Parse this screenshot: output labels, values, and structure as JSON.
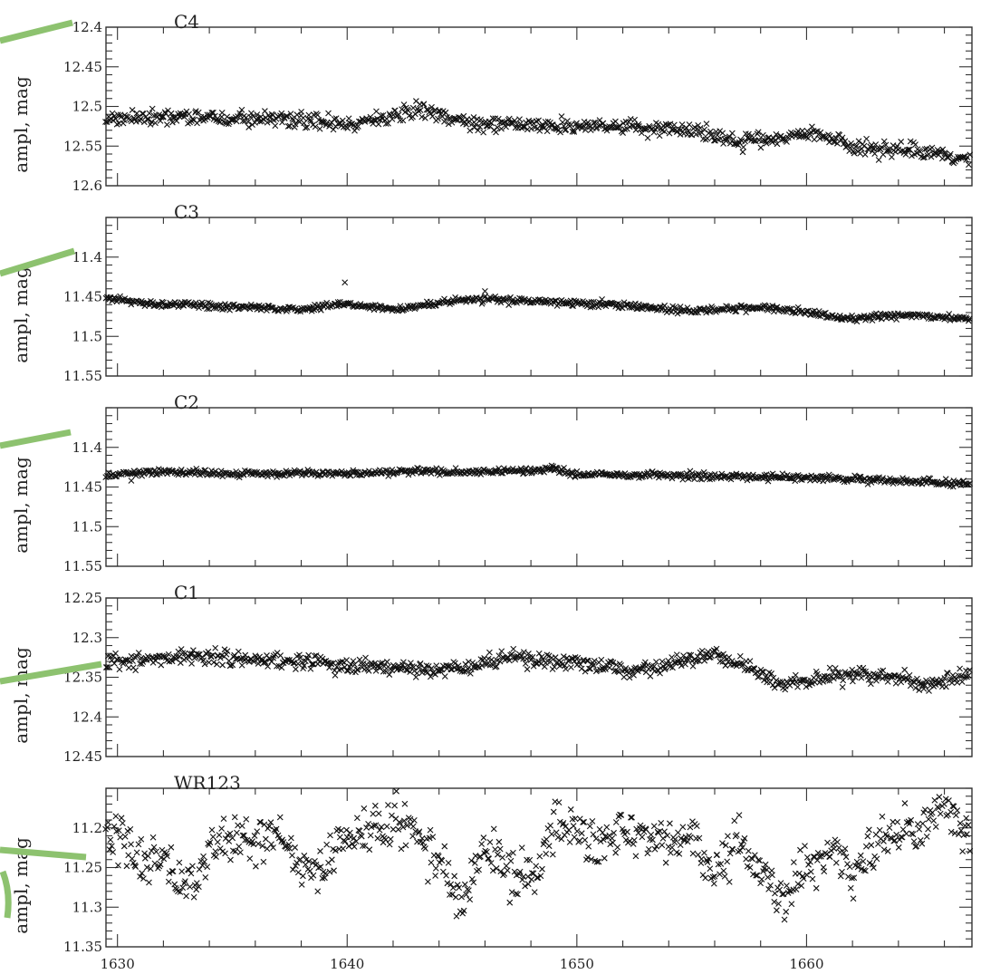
{
  "colors": {
    "marker": "#111111",
    "axis": "#333333",
    "accent_line": "#8dc26f"
  },
  "chart_data": [
    {
      "type": "scatter",
      "panel": "C4",
      "ylabel": "ampl, mag",
      "xlim": [
        1629.5,
        1667.2
      ],
      "ylim": [
        12.6,
        12.4
      ],
      "y_inverted": true,
      "xticks": [
        1630,
        1640,
        1650,
        1660
      ],
      "xtick_labels": [
        "",
        "",
        "",
        ""
      ],
      "yticks": [
        12.4,
        12.45,
        12.5,
        12.55,
        12.6
      ],
      "ytick_labels": [
        "12.4",
        "12.45",
        "12.5",
        "12.55",
        "12.6"
      ],
      "marker": "x",
      "grid": false,
      "trend_x": [
        1629.5,
        1632,
        1635,
        1637,
        1640,
        1642,
        1643.3,
        1645,
        1648,
        1652,
        1655,
        1657,
        1659,
        1660.5,
        1662,
        1664,
        1667
      ],
      "trend_y": [
        12.518,
        12.512,
        12.516,
        12.514,
        12.522,
        12.515,
        12.503,
        12.52,
        12.525,
        12.525,
        12.53,
        12.545,
        12.54,
        12.535,
        12.55,
        12.555,
        12.565
      ],
      "scatter": 0.005
    },
    {
      "type": "scatter",
      "panel": "C3",
      "ylabel": "ampl, mag",
      "xlim": [
        1629.5,
        1667.2
      ],
      "ylim": [
        11.55,
        11.35
      ],
      "y_inverted": true,
      "xticks": [
        1630,
        1640,
        1650,
        1660
      ],
      "xtick_labels": [
        "",
        "",
        "",
        ""
      ],
      "yticks": [
        11.4,
        11.45,
        11.5,
        11.55
      ],
      "ytick_labels": [
        "11.4",
        "11.45",
        "11.5",
        "11.55"
      ],
      "marker": "x",
      "grid": false,
      "trend_x": [
        1629.5,
        1632,
        1635,
        1638,
        1640,
        1642,
        1645,
        1648,
        1652,
        1655,
        1658,
        1660,
        1662,
        1664,
        1667
      ],
      "trend_y": [
        11.452,
        11.46,
        11.463,
        11.466,
        11.459,
        11.466,
        11.453,
        11.455,
        11.461,
        11.468,
        11.463,
        11.47,
        11.478,
        11.473,
        11.477
      ],
      "scatter": 0.002,
      "outliers": [
        [
          1639.9,
          11.432
        ],
        [
          1646.0,
          11.443
        ]
      ]
    },
    {
      "type": "scatter",
      "panel": "C2",
      "ylabel": "ampl, mag",
      "xlim": [
        1629.5,
        1667.2
      ],
      "ylim": [
        11.55,
        11.35
      ],
      "y_inverted": true,
      "xticks": [
        1630,
        1640,
        1650,
        1660
      ],
      "xtick_labels": [
        "",
        "",
        "",
        ""
      ],
      "yticks": [
        11.4,
        11.45,
        11.5,
        11.55
      ],
      "ytick_labels": [
        "11.4",
        "11.45",
        "11.5",
        "11.55"
      ],
      "marker": "x",
      "grid": false,
      "trend_x": [
        1629.5,
        1632,
        1635,
        1640,
        1643,
        1645,
        1649,
        1650,
        1655,
        1660,
        1664,
        1667
      ],
      "trend_y": [
        11.435,
        11.431,
        11.433,
        11.433,
        11.43,
        11.432,
        11.428,
        11.434,
        11.436,
        11.438,
        11.442,
        11.446
      ],
      "scatter": 0.002,
      "outliers": [
        [
          1648.9,
          11.423
        ],
        [
          1630.6,
          11.442
        ]
      ]
    },
    {
      "type": "scatter",
      "panel": "C1",
      "ylabel": "ampl, mag",
      "xlim": [
        1629.5,
        1667.2
      ],
      "ylim": [
        12.45,
        12.25
      ],
      "y_inverted": true,
      "xticks": [
        1630,
        1640,
        1650,
        1660
      ],
      "xtick_labels": [
        "",
        "",
        "",
        ""
      ],
      "yticks": [
        12.25,
        12.3,
        12.35,
        12.4,
        12.45
      ],
      "ytick_labels": [
        "12.25",
        "12.3",
        "12.35",
        "12.4",
        "12.45"
      ],
      "marker": "x",
      "grid": false,
      "trend_x": [
        1629.5,
        1632,
        1634,
        1637,
        1640,
        1643,
        1645,
        1647,
        1649,
        1651,
        1653,
        1654.5,
        1656,
        1657.5,
        1659,
        1661,
        1663,
        1665,
        1667
      ],
      "trend_y": [
        12.33,
        12.327,
        12.324,
        12.33,
        12.335,
        12.34,
        12.34,
        12.325,
        12.33,
        12.335,
        12.343,
        12.33,
        12.322,
        12.34,
        12.36,
        12.35,
        12.345,
        12.358,
        12.35
      ],
      "scatter": 0.005
    },
    {
      "type": "scatter",
      "panel": "WR123",
      "ylabel": "ampl, mag",
      "xlim": [
        1629.5,
        1667.2
      ],
      "ylim": [
        11.35,
        11.15
      ],
      "y_inverted": true,
      "xticks": [
        1630,
        1640,
        1650,
        1660
      ],
      "xtick_labels": [
        "1630",
        "1640",
        "1650",
        "1660"
      ],
      "yticks": [
        11.2,
        11.25,
        11.3,
        11.35
      ],
      "ytick_labels": [
        "11.2",
        "11.25",
        "11.3",
        "11.35"
      ],
      "marker": "x",
      "grid": false,
      "trend_x": [
        1629.5,
        1630,
        1631,
        1632,
        1633,
        1634,
        1635,
        1636,
        1637,
        1638,
        1639,
        1640,
        1641,
        1642,
        1643,
        1644,
        1645,
        1646,
        1647,
        1648,
        1649,
        1650,
        1651,
        1652,
        1653,
        1654,
        1655,
        1656,
        1657,
        1658,
        1659,
        1660,
        1661,
        1662,
        1663,
        1664,
        1665,
        1666,
        1667
      ],
      "trend_y": [
        11.23,
        11.21,
        11.24,
        11.25,
        11.28,
        11.23,
        11.21,
        11.22,
        11.2,
        11.25,
        11.24,
        11.21,
        11.2,
        11.19,
        11.21,
        11.24,
        11.29,
        11.22,
        11.25,
        11.27,
        11.2,
        11.21,
        11.22,
        11.2,
        11.21,
        11.22,
        11.21,
        11.26,
        11.22,
        11.25,
        11.29,
        11.25,
        11.23,
        11.26,
        11.22,
        11.2,
        11.21,
        11.17,
        11.21
      ],
      "scatter": 0.015
    }
  ]
}
